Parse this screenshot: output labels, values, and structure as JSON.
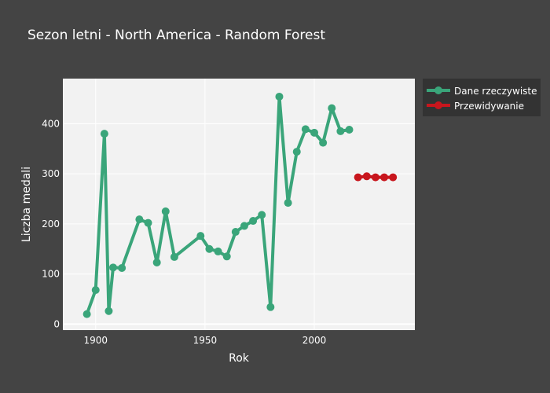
{
  "chart_data": {
    "type": "line",
    "title": "Sezon letni - North America - Random Forest",
    "xlabel": "Rok",
    "ylabel": "Liczba medali",
    "xlim": [
      1885,
      2046
    ],
    "ylim": [
      -12,
      490
    ],
    "x_ticks": [
      1900,
      1950,
      2000
    ],
    "y_ticks": [
      0,
      100,
      200,
      300,
      400
    ],
    "grid": true,
    "legend_position": "top-right, outside plot",
    "colors": {
      "page_background": "#444444",
      "plot_background": "#f2f2f2",
      "gridline": "#ffffff",
      "text": "#ffffff",
      "actual": "#3aa57a",
      "forecast": "#c8161d"
    },
    "series": [
      {
        "name": "Dane rzeczywiste",
        "x": [
          1896,
          1900,
          1904,
          1906,
          1908,
          1912,
          1920,
          1924,
          1928,
          1932,
          1936,
          1948,
          1952,
          1956,
          1960,
          1964,
          1968,
          1972,
          1976,
          1980,
          1984,
          1988,
          1992,
          1996,
          2000,
          2004,
          2008,
          2012,
          2016
        ],
        "y": [
          20,
          68,
          380,
          26,
          113,
          112,
          209,
          202,
          123,
          225,
          134,
          176,
          150,
          145,
          135,
          184,
          196,
          206,
          218,
          34,
          454,
          242,
          344,
          389,
          382,
          362,
          431,
          385,
          388
        ]
      },
      {
        "name": "Przewidywanie",
        "x": [
          2020,
          2024,
          2028,
          2032,
          2036
        ],
        "y": [
          293,
          295,
          293,
          293,
          293
        ]
      }
    ]
  }
}
